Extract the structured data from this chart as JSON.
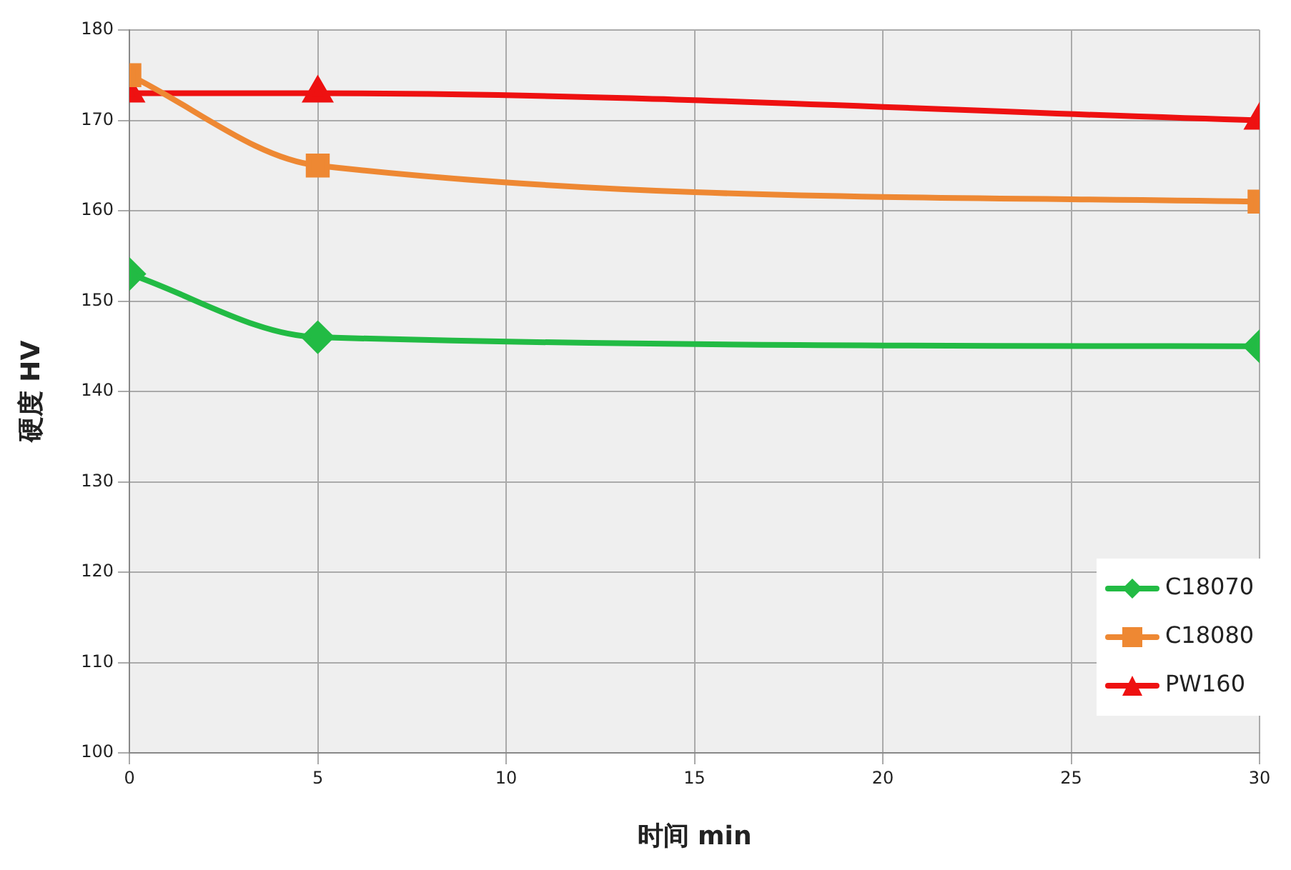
{
  "chart_data": {
    "type": "line",
    "xlabel": "时间 min",
    "ylabel": "硬度 HV",
    "x": [
      0,
      5,
      30
    ],
    "xlim": [
      0,
      30
    ],
    "xticks": [
      0,
      5,
      10,
      15,
      20,
      25,
      30
    ],
    "ylim": [
      100,
      180
    ],
    "yticks": [
      100,
      110,
      120,
      130,
      140,
      150,
      160,
      170,
      180
    ],
    "grid": true,
    "legend": "bottom right",
    "line_style": "solid",
    "series": [
      {
        "name": "C18070",
        "color": "#22bb44",
        "values": [
          153,
          146,
          145
        ],
        "marker": "diamond"
      },
      {
        "name": "C18080",
        "color": "#ee8833",
        "values": [
          175,
          165,
          161
        ],
        "marker": "square"
      },
      {
        "name": "PW160",
        "color": "#ee1111",
        "values": [
          173,
          173,
          170
        ],
        "marker": "triangle"
      }
    ]
  }
}
